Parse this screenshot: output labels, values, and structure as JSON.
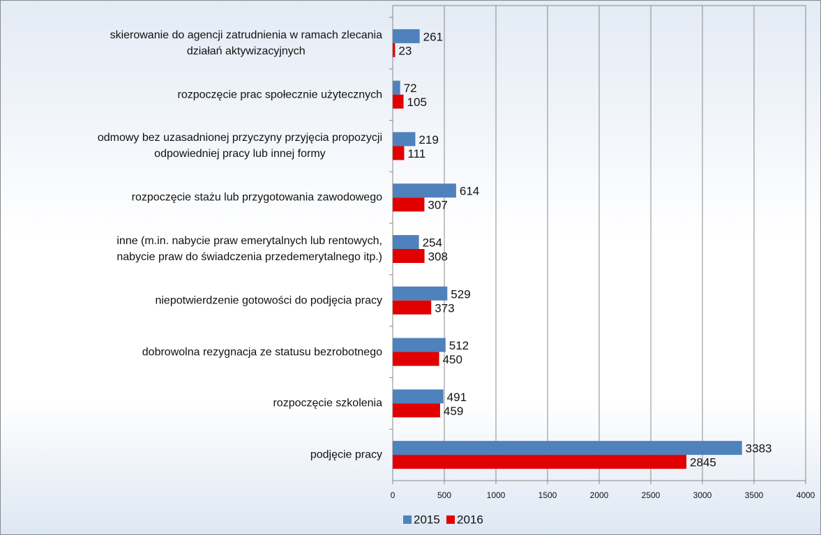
{
  "chart_data": {
    "type": "hbar",
    "categories": [
      "skierowanie do agencji zatrudnienia w ramach zlecania\ndziałań aktywizacyjnych",
      "rozpoczęcie prac społecznie użytecznych",
      "odmowy bez uzasadnionej przyczyny przyjęcia propozycji\nodpowiedniej pracy lub innej formy",
      "rozpoczęcie stażu lub przygotowania zawodowego",
      "inne (m.in. nabycie praw emerytalnych lub rentowych,\nnabycie praw do świadczenia przedemerytalnego itp.)",
      "niepotwierdzenie gotowości do podjęcia pracy",
      "dobrowolna rezygnacja ze statusu bezrobotnego",
      "rozpoczęcie szkolenia",
      "podjęcie pracy"
    ],
    "series": [
      {
        "name": "2015",
        "color": "#4f81bd",
        "values": [
          261,
          72,
          219,
          614,
          254,
          529,
          512,
          491,
          3383
        ]
      },
      {
        "name": "2016",
        "color": "#e00000",
        "values": [
          23,
          105,
          111,
          307,
          308,
          373,
          450,
          459,
          2845
        ]
      }
    ],
    "xlim": [
      0,
      4000
    ],
    "xticks": [
      0,
      500,
      1000,
      1500,
      2000,
      2500,
      3000,
      3500,
      4000
    ],
    "grid": true,
    "legend": "bottom"
  }
}
